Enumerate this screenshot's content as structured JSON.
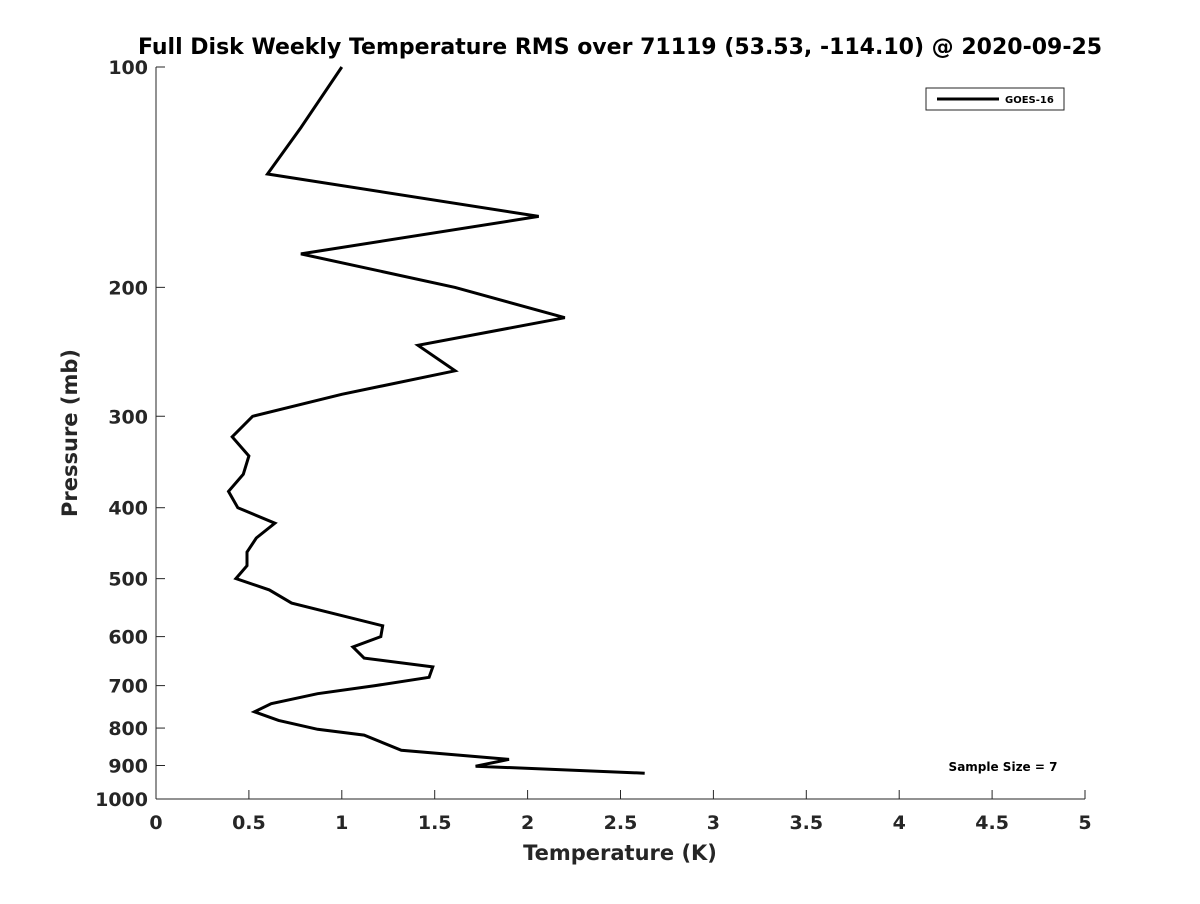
{
  "chart_data": {
    "type": "line",
    "title": "Full Disk Weekly Temperature RMS over 71119 (53.53, -114.10) @ 2020-09-25",
    "xlabel": "Temperature (K)",
    "ylabel": "Pressure (mb)",
    "xlim": [
      0,
      5
    ],
    "ylim": [
      100,
      1000
    ],
    "yscale": "log",
    "y_reversed": true,
    "grid": false,
    "xticks": [
      "0",
      "0.5",
      "1",
      "1.5",
      "2",
      "2.5",
      "3",
      "3.5",
      "4",
      "4.5",
      "5"
    ],
    "yticks": [
      {
        "v": 100,
        "label": "100"
      },
      {
        "v": 200,
        "label": "200"
      },
      {
        "v": 300,
        "label": "300"
      },
      {
        "v": 400,
        "label": "400"
      },
      {
        "v": 500,
        "label": "500"
      },
      {
        "v": 600,
        "label": "600"
      },
      {
        "v": 700,
        "label": "700"
      },
      {
        "v": 800,
        "label": "800"
      },
      {
        "v": 900,
        "label": "900"
      },
      {
        "v": 1000,
        "label": "1000"
      }
    ],
    "legend": {
      "placement": "top-right",
      "entries": [
        "GOES-16"
      ]
    },
    "annotation": "Sample Size = 7",
    "series": [
      {
        "name": "GOES-16",
        "color": "#000000",
        "points": [
          [
            1.0,
            100
          ],
          [
            0.78,
            121
          ],
          [
            0.6,
            140
          ],
          [
            2.06,
            160
          ],
          [
            0.78,
            180
          ],
          [
            1.61,
            200
          ],
          [
            2.2,
            220
          ],
          [
            1.41,
            240
          ],
          [
            1.61,
            260
          ],
          [
            1.0,
            280
          ],
          [
            0.52,
            300
          ],
          [
            0.41,
            320
          ],
          [
            0.5,
            340
          ],
          [
            0.47,
            360
          ],
          [
            0.39,
            380
          ],
          [
            0.44,
            400
          ],
          [
            0.64,
            420
          ],
          [
            0.54,
            440
          ],
          [
            0.49,
            460
          ],
          [
            0.49,
            480
          ],
          [
            0.43,
            500
          ],
          [
            0.61,
            518
          ],
          [
            0.73,
            540
          ],
          [
            1.22,
            580
          ],
          [
            1.21,
            600
          ],
          [
            1.06,
            620
          ],
          [
            1.12,
            642
          ],
          [
            1.49,
            660
          ],
          [
            1.47,
            682
          ],
          [
            1.18,
            700
          ],
          [
            0.87,
            718
          ],
          [
            0.62,
            741
          ],
          [
            0.53,
            760
          ],
          [
            0.66,
            781
          ],
          [
            0.87,
            803
          ],
          [
            1.12,
            818
          ],
          [
            1.32,
            858
          ],
          [
            1.9,
            883
          ],
          [
            1.72,
            902
          ],
          [
            2.63,
            922
          ]
        ]
      }
    ]
  }
}
